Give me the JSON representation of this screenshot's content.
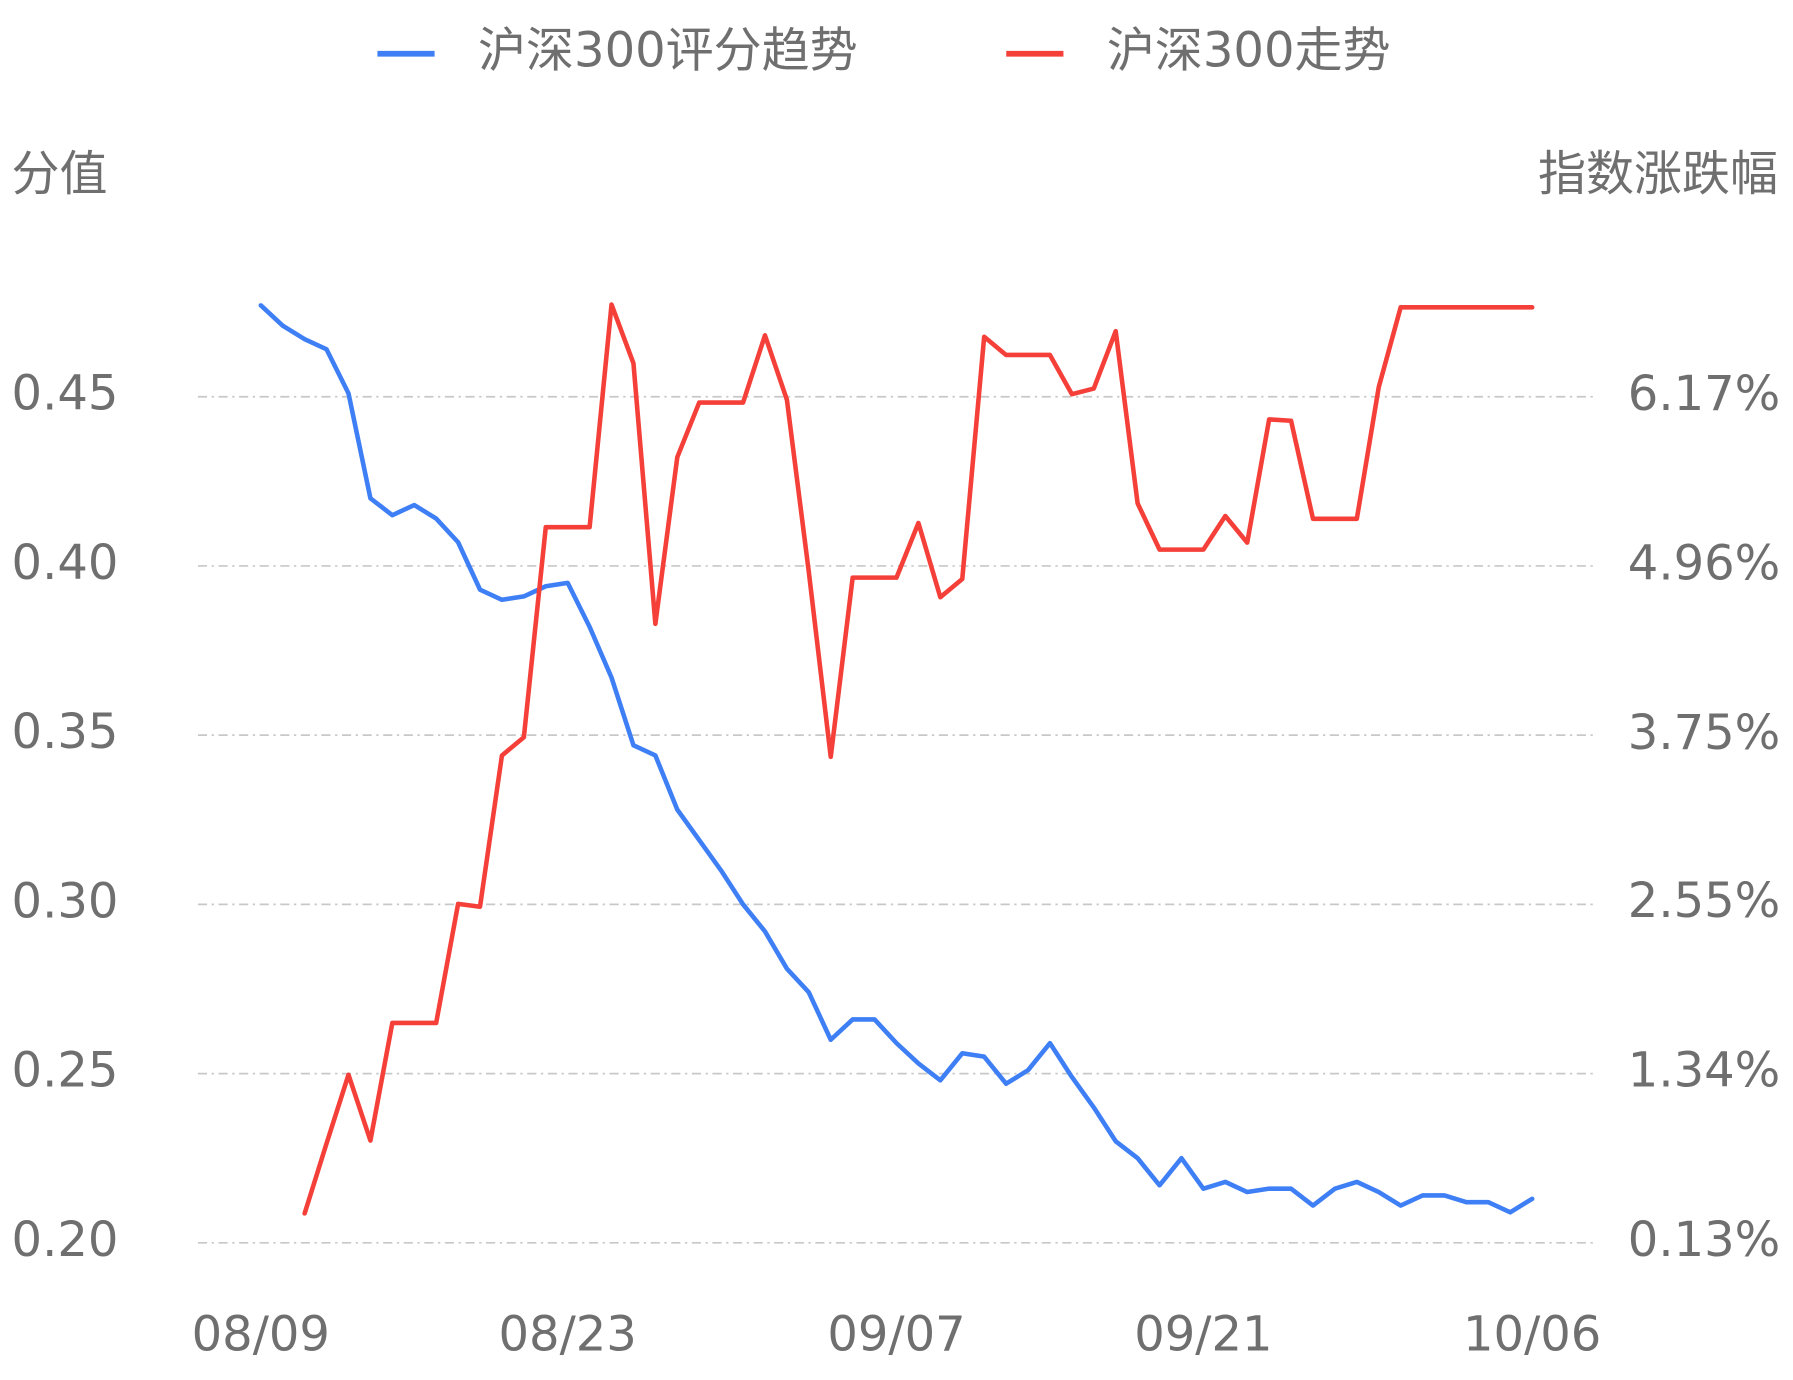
{
  "chart_data": {
    "type": "line",
    "y_label": "分值",
    "y2_label": "指数涨跌幅",
    "legend": "top",
    "grid": true,
    "categories": [
      "08/09",
      null,
      null,
      null,
      null,
      null,
      null,
      null,
      null,
      null,
      null,
      null,
      null,
      null,
      "08/23",
      null,
      null,
      null,
      null,
      null,
      null,
      null,
      null,
      null,
      null,
      null,
      null,
      null,
      null,
      "09/07",
      null,
      null,
      null,
      null,
      null,
      null,
      null,
      null,
      null,
      null,
      null,
      null,
      null,
      "09/21",
      null,
      null,
      null,
      null,
      null,
      null,
      null,
      null,
      null,
      null,
      null,
      null,
      null,
      null,
      "10/06"
    ],
    "ylim": [
      0.2,
      0.5
    ],
    "yticks": [
      {
        "value": 0.2,
        "label": "0.20"
      },
      0.25,
      {
        "value": 0.3,
        "label": "0.30"
      },
      0.35,
      {
        "value": 0.4,
        "label": "0.40"
      },
      0.45
    ],
    "y2lim": [
      0.13,
      7.38
    ],
    "y2ticks": [
      {
        "value": 0.13,
        "label": "0.13%"
      },
      {
        "value": 1.34,
        "label": "1.34%"
      },
      {
        "value": 2.55,
        "label": "2.55%"
      },
      {
        "value": 3.75,
        "label": "3.75%"
      },
      {
        "value": 4.96,
        "label": "4.96%"
      },
      {
        "value": 6.17,
        "label": "6.17%"
      }
    ],
    "series": [
      {
        "name": "沪深300评分趋势",
        "color": "#3f7ff5",
        "axis": "y",
        "values": [
          0.477,
          0.471,
          0.467,
          0.464,
          0.451,
          0.42,
          0.415,
          0.418,
          0.414,
          0.407,
          0.393,
          0.39,
          0.391,
          0.394,
          0.395,
          0.382,
          0.367,
          0.347,
          0.344,
          0.328,
          0.319,
          0.31,
          0.3,
          0.292,
          0.281,
          0.274,
          0.26,
          0.266,
          0.266,
          0.259,
          0.253,
          0.248,
          0.256,
          0.255,
          0.247,
          0.251,
          0.259,
          0.249,
          0.24,
          0.23,
          0.225,
          0.217,
          0.225,
          0.216,
          0.218,
          0.215,
          0.216,
          0.216,
          0.211,
          0.216,
          0.218,
          0.215,
          0.211,
          0.214,
          0.214,
          0.212,
          0.212,
          0.209,
          0.213
        ]
      },
      {
        "name": "沪深300走势",
        "color": "#f5403a",
        "axis": "y2",
        "values": [
          null,
          null,
          0.34,
          0.84,
          1.33,
          0.86,
          1.7,
          1.7,
          1.7,
          2.55,
          2.53,
          3.61,
          3.74,
          5.24,
          5.24,
          5.24,
          6.83,
          6.41,
          4.55,
          5.74,
          6.13,
          6.13,
          6.13,
          6.61,
          6.15,
          4.92,
          3.6,
          4.88,
          4.88,
          4.88,
          5.27,
          4.74,
          4.87,
          6.6,
          6.47,
          6.47,
          6.47,
          6.19,
          6.23,
          6.64,
          5.41,
          5.08,
          5.08,
          5.08,
          5.32,
          5.13,
          6.01,
          6.0,
          5.3,
          5.3,
          5.3,
          6.24,
          6.81,
          6.81,
          6.81,
          6.81,
          6.81,
          6.81,
          6.81
        ]
      }
    ]
  }
}
